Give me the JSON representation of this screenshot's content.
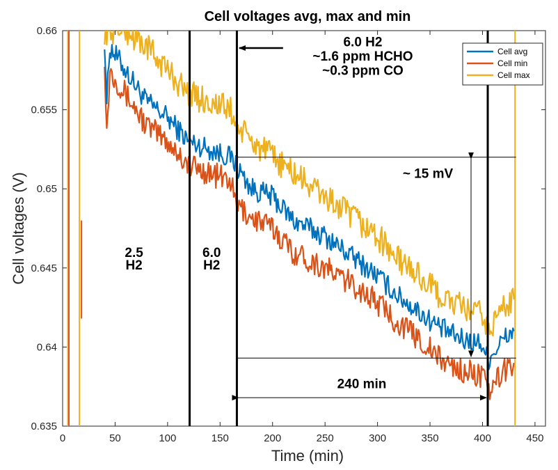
{
  "chart_data": {
    "type": "line",
    "title": "Cell voltages avg, max and min",
    "xlabel": "Time (min)",
    "ylabel": "Cell voltages (V)",
    "xlim": [
      0,
      460
    ],
    "ylim": [
      0.635,
      0.66
    ],
    "xticks": [
      0,
      50,
      100,
      150,
      200,
      250,
      300,
      350,
      400,
      450
    ],
    "yticks": [
      0.635,
      0.64,
      0.645,
      0.65,
      0.655,
      0.66
    ],
    "xtick_labels": [
      "0",
      "50",
      "100",
      "150",
      "200",
      "250",
      "300",
      "350",
      "400",
      "450"
    ],
    "ytick_labels": [
      "0.635",
      "0.64",
      "0.645",
      "0.65",
      "0.655",
      "0.66"
    ],
    "grid": false,
    "legend_position": "top-right",
    "series": [
      {
        "name": "Cell avg",
        "color": "#0072BD",
        "x": [
          40,
          42,
          45,
          60,
          80,
          100,
          120,
          140,
          160,
          165,
          180,
          200,
          220,
          250,
          280,
          300,
          320,
          340,
          360,
          380,
          400,
          405,
          420,
          430
        ],
        "y": [
          0.6595,
          0.6555,
          0.659,
          0.6575,
          0.6555,
          0.6545,
          0.653,
          0.6525,
          0.652,
          0.6515,
          0.65,
          0.6495,
          0.648,
          0.647,
          0.6455,
          0.6445,
          0.6432,
          0.6422,
          0.6412,
          0.6405,
          0.6402,
          0.6392,
          0.6405,
          0.641
        ]
      },
      {
        "name": "Cell min",
        "color": "#D95319",
        "x": [
          40,
          42,
          45,
          60,
          80,
          100,
          120,
          140,
          160,
          165,
          180,
          200,
          220,
          250,
          280,
          300,
          320,
          340,
          360,
          380,
          400,
          405,
          420,
          430
        ],
        "y": [
          0.6585,
          0.6535,
          0.6575,
          0.656,
          0.654,
          0.653,
          0.6515,
          0.651,
          0.6505,
          0.649,
          0.6482,
          0.6475,
          0.646,
          0.645,
          0.6438,
          0.6428,
          0.6415,
          0.6405,
          0.6392,
          0.6385,
          0.6382,
          0.637,
          0.6385,
          0.639
        ]
      },
      {
        "name": "Cell max",
        "color": "#EDB120",
        "x": [
          40,
          42,
          45,
          60,
          80,
          100,
          120,
          140,
          160,
          165,
          180,
          200,
          220,
          250,
          280,
          300,
          320,
          340,
          360,
          380,
          400,
          405,
          420,
          430
        ],
        "y": [
          0.66,
          0.66,
          0.66,
          0.66,
          0.659,
          0.6575,
          0.656,
          0.6555,
          0.655,
          0.654,
          0.653,
          0.652,
          0.651,
          0.6495,
          0.648,
          0.647,
          0.6455,
          0.6445,
          0.6432,
          0.6425,
          0.642,
          0.641,
          0.6425,
          0.643
        ]
      }
    ],
    "vertical_markers": [
      {
        "x": 121,
        "label": ""
      },
      {
        "x": 166,
        "label": ""
      },
      {
        "x": 405,
        "label": ""
      }
    ],
    "annotations": [
      {
        "text": "2.5",
        "x": 68,
        "y": 0.6457
      },
      {
        "text": "H2",
        "x": 68,
        "y": 0.6449
      },
      {
        "text": "6.0",
        "x": 142,
        "y": 0.6457
      },
      {
        "text": "H2",
        "x": 142,
        "y": 0.6449
      },
      {
        "text": "6.0 H2",
        "x": 286,
        "y": 0.659
      },
      {
        "text": "~1.6 ppm HCHO",
        "x": 286,
        "y": 0.6581
      },
      {
        "text": "~0.3 ppm CO",
        "x": 286,
        "y": 0.6572
      },
      {
        "text": "~ 15 mV",
        "x": 348,
        "y": 0.6507
      },
      {
        "text": "240 min",
        "x": 285,
        "y": 0.6374
      }
    ],
    "reference_lines": [
      {
        "y": 0.652,
        "x_from": 166,
        "x_to": 432
      },
      {
        "y": 0.6393,
        "x_from": 166,
        "x_to": 432
      }
    ]
  }
}
